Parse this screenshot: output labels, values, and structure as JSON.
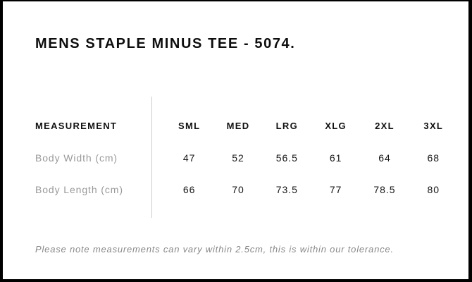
{
  "title": "MENS STAPLE MINUS TEE - 5074.",
  "size_chart": {
    "header_label": "MEASUREMENT",
    "columns": [
      "SML",
      "MED",
      "LRG",
      "XLG",
      "2XL",
      "3XL"
    ],
    "rows": [
      {
        "label": "Body Width (cm)",
        "values": [
          "47",
          "52",
          "56.5",
          "61",
          "64",
          "68"
        ]
      },
      {
        "label": "Body Length (cm)",
        "values": [
          "66",
          "70",
          "73.5",
          "77",
          "78.5",
          "80"
        ]
      }
    ]
  },
  "note": "Please note measurements can vary within 2.5cm, this is within our tolerance.",
  "colors": {
    "frame": "#000000",
    "background": "#ffffff",
    "heading_text": "#0d0d0d",
    "value_text": "#161616",
    "label_gray": "#999999",
    "note_gray": "#888888",
    "divider": "#cccccc"
  }
}
